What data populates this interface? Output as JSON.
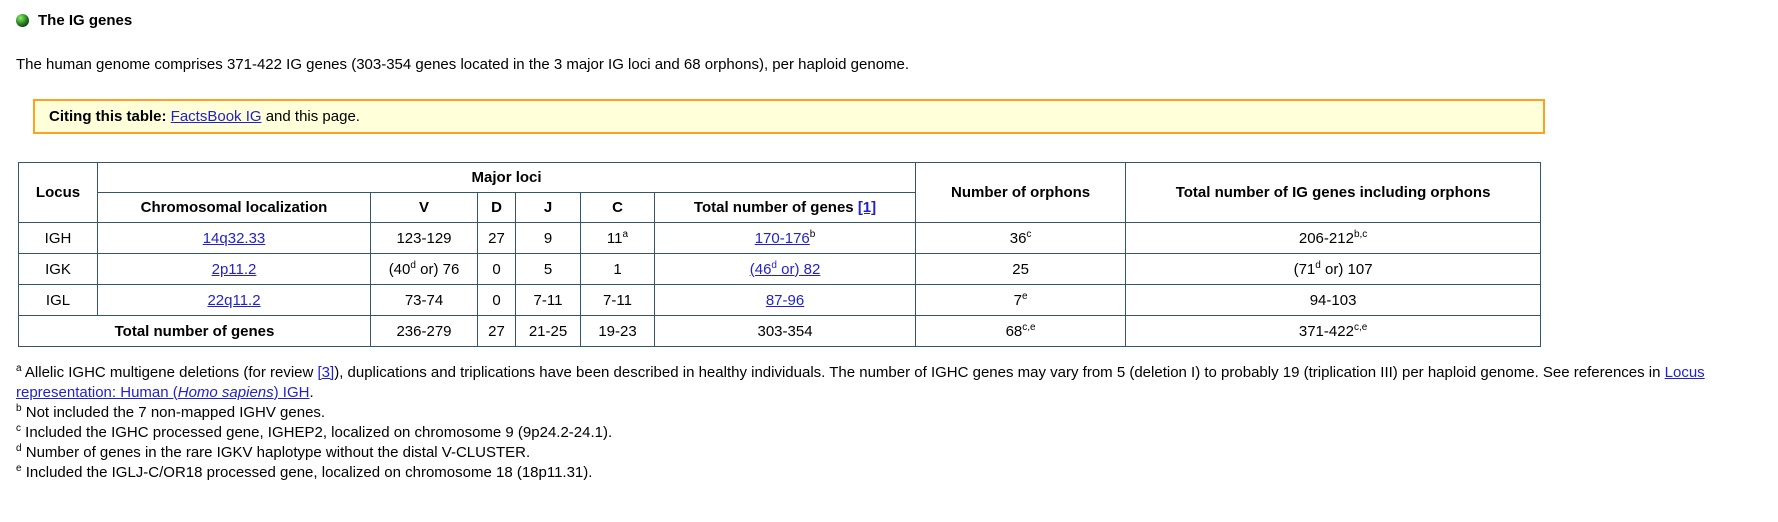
{
  "colors": {
    "link": "#2222cc",
    "table_border": "#33566b",
    "citing_border": "#ffa022",
    "citing_bg": "#ffffd9",
    "bullet_green": "#2e8b2e"
  },
  "page": {
    "title": "The IG genes",
    "intro": "The human genome comprises 371-422 IG genes (303-354 genes located in the 3 major IG loci and 68 orphons), per haploid genome."
  },
  "citing": {
    "label": "Citing this table:",
    "link": "FactsBook IG",
    "suffix": " and this page."
  },
  "table": {
    "header": {
      "locus": "Locus",
      "major_loci": "Major loci",
      "chromosomal_localization": "Chromosomal localization",
      "v": "V",
      "d": "D",
      "j": "J",
      "c": "C",
      "total_genes": "Total number of genes {{[1]}}",
      "orphons": "Number of orphons",
      "total_ig": "Total number of IG genes including orphons"
    },
    "rows": [
      {
        "locus": "IGH",
        "chrom": "{{14q32.33}}",
        "v": "123-129",
        "d": "27",
        "j": "9",
        "c": "11^a^",
        "total": "{{170-176}}^b^",
        "orphons": "36^c^",
        "total_ig": "206-212^b,c^"
      },
      {
        "locus": "IGK",
        "chrom": "{{2p11.2}}",
        "v": "(40^d^ or) 76",
        "d": "0",
        "j": "5",
        "c": "1",
        "total": "{{(46^d^ or) 82}}",
        "orphons": "25",
        "total_ig": "(71^d^ or) 107"
      },
      {
        "locus": "IGL",
        "chrom": "{{22q11.2}}",
        "v": "73-74",
        "d": "0",
        "j": "7-11",
        "c": "7-11",
        "total": "{{87-96}}",
        "orphons": "7^e^",
        "total_ig": "94-103"
      }
    ],
    "total_row": {
      "label": "Total number of genes",
      "v": "236-279",
      "d": "27",
      "j": "21-25",
      "c": "19-23",
      "total": "303-354",
      "orphons": "68^c,e^",
      "total_ig": "371-422^c,e^"
    }
  },
  "footnotes": [
    "^a^ Allelic IGHC multigene deletions (for review {{[3]}}), duplications and triplications have been described in healthy individuals. The number of IGHC genes may vary from 5 (deletion I) to probably 19 (triplication III) per haploid genome. See references in {{Locus representation: Human (//Homo sapiens//) IGH}}.",
    "^b^ Not included the 7 non-mapped IGHV genes.",
    "^c^ Included the IGHC processed gene, IGHEP2, localized on chromosome 9 (9p24.2-24.1).",
    "^d^ Number of genes in the rare IGKV haplotype without the distal V-CLUSTER.",
    "^e^ Included the IGLJ-C/OR18 processed gene, localized on chromosome 18 (18p11.31)."
  ]
}
